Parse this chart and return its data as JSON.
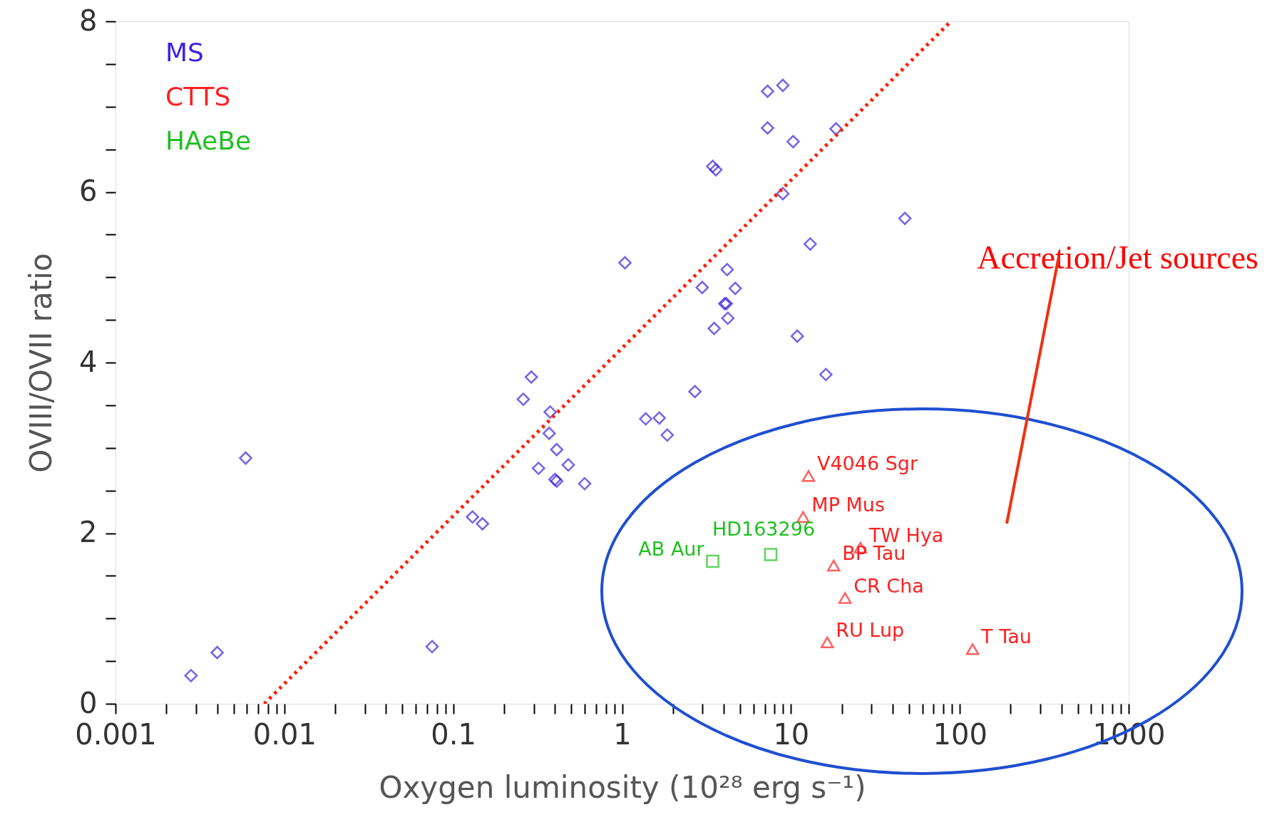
{
  "chart_data": {
    "type": "scatter",
    "xlabel": "Oxygen luminosity (10²⁸ erg s⁻¹)",
    "ylabel": "OVIII/OVII ratio",
    "log": "x",
    "grid": false,
    "legend": "top left",
    "xlim": [
      0.001,
      1000
    ],
    "ylim": [
      0,
      8
    ],
    "xticks": [
      0.001,
      {
        "value": 0.002,
        "label": null
      },
      {
        "value": 0.003,
        "label": null
      },
      {
        "value": 0.004,
        "label": null
      },
      {
        "value": 0.005,
        "label": null
      },
      {
        "value": 0.006,
        "label": null
      },
      {
        "value": 0.007,
        "label": null
      },
      {
        "value": 0.008,
        "label": null
      },
      {
        "value": 0.009,
        "label": null
      },
      0.01,
      {
        "value": 0.02,
        "label": null
      },
      {
        "value": 0.03,
        "label": null
      },
      {
        "value": 0.04,
        "label": null
      },
      {
        "value": 0.05,
        "label": null
      },
      {
        "value": 0.06,
        "label": null
      },
      {
        "value": 0.07,
        "label": null
      },
      {
        "value": 0.08,
        "label": null
      },
      {
        "value": 0.09,
        "label": null
      },
      0.1,
      {
        "value": 0.2,
        "label": null
      },
      {
        "value": 0.3,
        "label": null
      },
      {
        "value": 0.4,
        "label": null
      },
      {
        "value": 0.5,
        "label": null
      },
      {
        "value": 0.6,
        "label": null
      },
      {
        "value": 0.7,
        "label": null
      },
      {
        "value": 0.8,
        "label": null
      },
      {
        "value": 0.9,
        "label": null
      },
      1,
      {
        "value": 2,
        "label": null
      },
      {
        "value": 3,
        "label": null
      },
      {
        "value": 4,
        "label": null
      },
      {
        "value": 5,
        "label": null
      },
      {
        "value": 6,
        "label": null
      },
      {
        "value": 7,
        "label": null
      },
      {
        "value": 8,
        "label": null
      },
      {
        "value": 9,
        "label": null
      },
      10,
      {
        "value": 20,
        "label": null
      },
      {
        "value": 30,
        "label": null
      },
      {
        "value": 40,
        "label": null
      },
      {
        "value": 50,
        "label": null
      },
      {
        "value": 60,
        "label": null
      },
      {
        "value": 70,
        "label": null
      },
      {
        "value": 80,
        "label": null
      },
      {
        "value": 90,
        "label": null
      },
      100,
      {
        "value": 200,
        "label": null
      },
      {
        "value": 300,
        "label": null
      },
      {
        "value": 400,
        "label": null
      },
      {
        "value": 500,
        "label": null
      },
      {
        "value": 600,
        "label": null
      },
      {
        "value": 700,
        "label": null
      },
      {
        "value": 800,
        "label": null
      },
      {
        "value": 900,
        "label": null
      },
      1000
    ],
    "yticks": [
      0,
      {
        "value": 0.5,
        "label": null
      },
      {
        "value": 1,
        "label": null
      },
      {
        "value": 1.5,
        "label": null
      },
      2,
      {
        "value": 2.5,
        "label": null
      },
      {
        "value": 3,
        "label": null
      },
      {
        "value": 3.5,
        "label": null
      },
      4,
      {
        "value": 4.5,
        "label": null
      },
      {
        "value": 5,
        "label": null
      },
      {
        "value": 5.5,
        "label": null
      },
      6,
      {
        "value": 6.5,
        "label": null
      },
      {
        "value": 7,
        "label": null
      },
      {
        "value": 7.5,
        "label": null
      },
      8
    ],
    "series": [
      {
        "name": "MS",
        "marker": "diamond",
        "color": "#4020e0",
        "x": [
          0.0028,
          0.004,
          0.0059,
          0.075,
          0.13,
          0.149,
          0.26,
          0.29,
          0.32,
          0.375,
          0.37,
          0.41,
          0.4,
          0.41,
          0.48,
          0.6,
          1.04,
          1.38,
          1.66,
          1.85,
          2.7,
          2.98,
          3.44,
          3.59,
          3.51,
          4.05,
          4.14,
          4.19,
          4.23,
          4.68,
          7.27,
          8.95,
          7.27,
          10.3,
          8.95,
          10.9,
          13.0,
          16.1,
          18.5,
          47.3
        ],
        "values": [
          0.33,
          0.6,
          2.88,
          0.67,
          2.19,
          2.11,
          3.57,
          3.83,
          2.76,
          3.42,
          3.17,
          2.98,
          2.63,
          2.61,
          2.8,
          2.58,
          5.17,
          3.34,
          3.35,
          3.15,
          3.66,
          4.88,
          6.3,
          6.26,
          4.4,
          4.69,
          4.69,
          5.09,
          4.52,
          4.87,
          7.18,
          7.25,
          6.75,
          6.59,
          5.98,
          4.31,
          5.39,
          3.86,
          6.74,
          5.69
        ]
      },
      {
        "name": "CTTS",
        "marker": "triangle",
        "color": "#ff2020",
        "x": [
          12.7,
          11.8,
          25.8,
          17.9,
          20.9,
          16.4,
          119
        ],
        "values": [
          2.67,
          2.19,
          1.83,
          1.62,
          1.24,
          0.72,
          0.64
        ]
      },
      {
        "name": "HAeBe",
        "marker": "square",
        "color": "#20c020",
        "x": [
          3.44,
          7.59
        ],
        "values": [
          1.67,
          1.75
        ]
      },
      {
        "type": "line",
        "line_style": "dotted",
        "color": "#ff2000",
        "x": [
          0.0076,
          88.5
        ],
        "values": [
          0,
          8
        ]
      }
    ],
    "annotations": [
      {
        "text": "V4046 Sgr",
        "x": 12.7,
        "y": 2.67
      },
      {
        "text": "MP Mus",
        "x": 11.8,
        "y": 2.19
      },
      {
        "text": "TW Hya",
        "x": 25.8,
        "y": 1.83
      },
      {
        "text": "BP Tau",
        "x": 17.9,
        "y": 1.62
      },
      {
        "text": "CR Cha",
        "x": 20.9,
        "y": 1.24
      },
      {
        "text": "RU Lup",
        "x": 16.4,
        "y": 0.72
      },
      {
        "text": "T Tau",
        "x": 119,
        "y": 0.64
      },
      {
        "text": "AB Aur",
        "x": 3.44,
        "y": 1.67
      },
      {
        "text": "HD163296",
        "x": 7.59,
        "y": 1.75
      },
      "Accretion/Jet sources"
    ]
  }
}
